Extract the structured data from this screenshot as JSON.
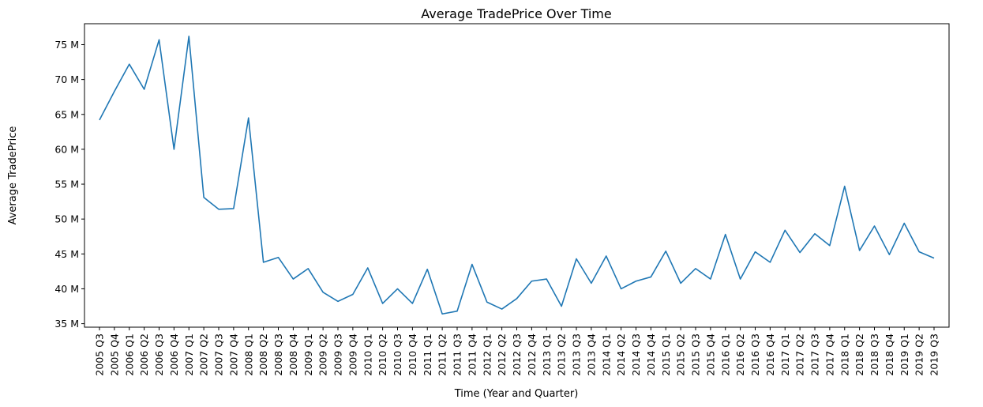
{
  "chart_data": {
    "type": "line",
    "title": "Average TradePrice Over Time",
    "xlabel": "Time (Year and Quarter)",
    "ylabel": "Average TradePrice",
    "ylim": [
      34.5,
      78
    ],
    "y_ticks": [
      35,
      40,
      45,
      50,
      55,
      60,
      65,
      70,
      75
    ],
    "y_tick_labels": [
      "35 M",
      "40 M",
      "45 M",
      "50 M",
      "55 M",
      "60 M",
      "65 M",
      "70 M",
      "75 M"
    ],
    "y_unit": "M",
    "grid": false,
    "legend": "none",
    "categories": [
      "2005 Q3",
      "2005 Q4",
      "2006 Q1",
      "2006 Q2",
      "2006 Q3",
      "2006 Q4",
      "2007 Q1",
      "2007 Q2",
      "2007 Q3",
      "2007 Q4",
      "2008 Q1",
      "2008 Q2",
      "2008 Q3",
      "2008 Q4",
      "2009 Q1",
      "2009 Q2",
      "2009 Q3",
      "2009 Q4",
      "2010 Q1",
      "2010 Q2",
      "2010 Q3",
      "2010 Q4",
      "2011 Q1",
      "2011 Q2",
      "2011 Q3",
      "2011 Q4",
      "2012 Q1",
      "2012 Q2",
      "2012 Q3",
      "2012 Q4",
      "2013 Q1",
      "2013 Q2",
      "2013 Q3",
      "2013 Q4",
      "2014 Q1",
      "2014 Q2",
      "2014 Q3",
      "2014 Q4",
      "2015 Q1",
      "2015 Q2",
      "2015 Q3",
      "2015 Q4",
      "2016 Q1",
      "2016 Q2",
      "2016 Q3",
      "2016 Q4",
      "2017 Q1",
      "2017 Q2",
      "2017 Q3",
      "2017 Q4",
      "2018 Q1",
      "2018 Q2",
      "2018 Q3",
      "2018 Q4",
      "2019 Q1",
      "2019 Q2",
      "2019 Q3"
    ],
    "series": [
      {
        "color": "#1f77b4",
        "values": [
          64.2,
          68.3,
          72.2,
          68.6,
          75.7,
          60.0,
          76.2,
          53.1,
          51.4,
          51.5,
          64.5,
          43.8,
          44.5,
          41.4,
          42.9,
          39.5,
          38.2,
          39.2,
          43.0,
          37.9,
          40.0,
          37.9,
          42.8,
          36.4,
          36.8,
          43.5,
          38.1,
          37.1,
          38.6,
          41.1,
          41.4,
          37.5,
          44.3,
          40.8,
          44.7,
          40.0,
          41.1,
          41.7,
          45.4,
          40.8,
          42.9,
          41.4,
          47.8,
          41.4,
          45.3,
          43.8,
          48.4,
          45.2,
          47.9,
          46.2,
          54.7,
          45.5,
          49.0,
          44.9,
          49.4,
          45.3,
          44.4
        ]
      }
    ]
  }
}
